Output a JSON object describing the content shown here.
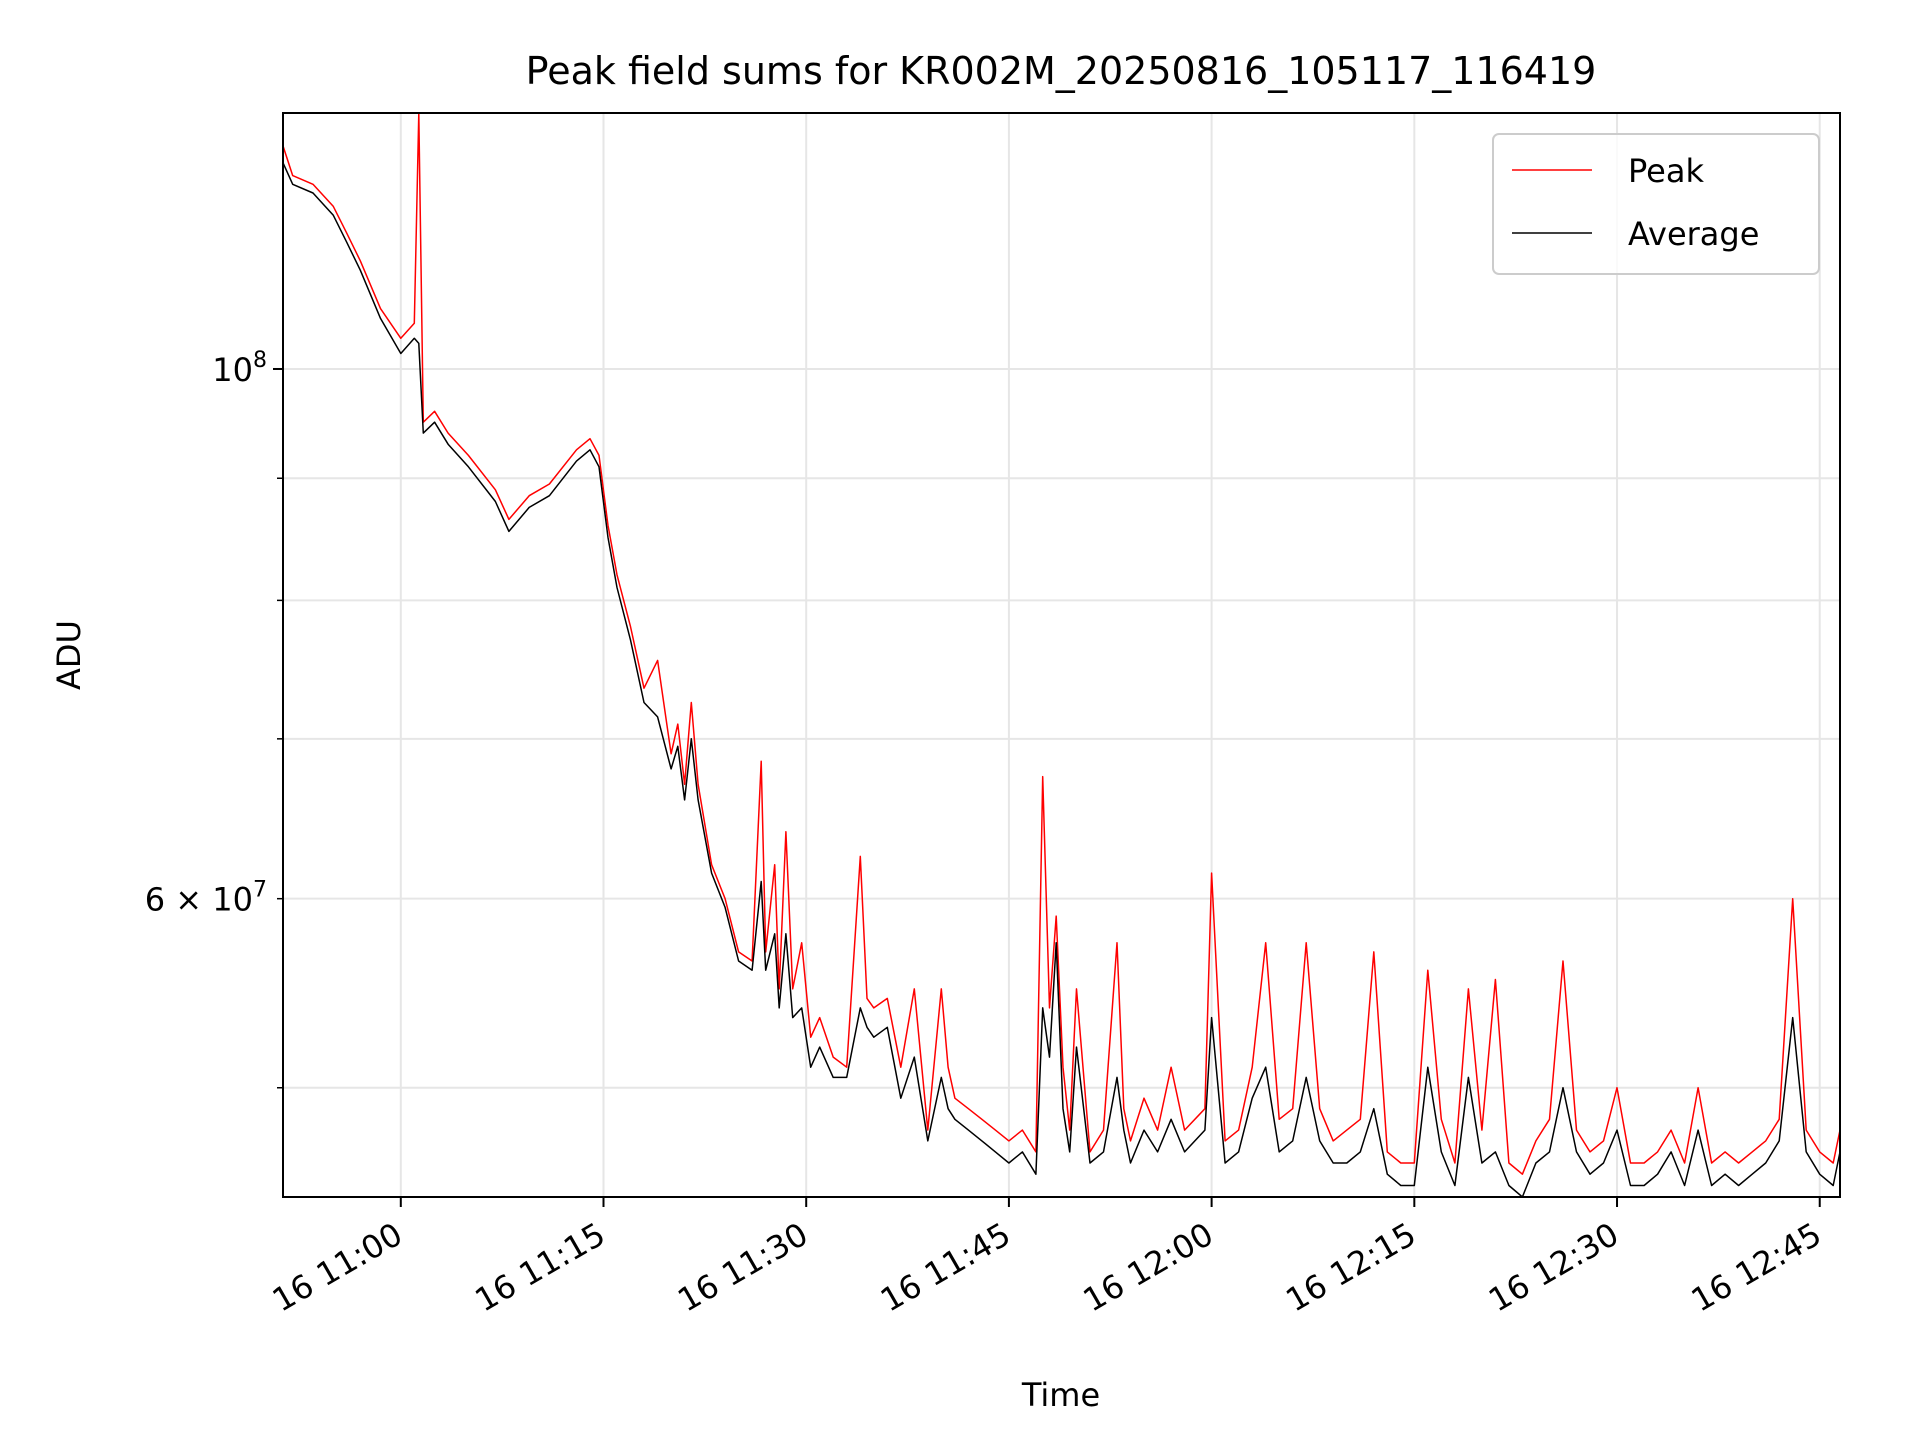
{
  "chart_data": {
    "type": "line",
    "title": "Peak field sums for KR002M_20250816_105117_116419",
    "xlabel": "Time",
    "ylabel": "ADU",
    "y_scale": "log",
    "ylim": [
      45000000,
      128000000
    ],
    "xlim": [
      "2025-08-16 10:51:17",
      "2025-08-16 12:46:30"
    ],
    "grid": true,
    "legend_position": "top-right",
    "x_ticks": [
      {
        "value": "2025-08-16 11:00",
        "label": "16 11:00"
      },
      {
        "value": "2025-08-16 11:15",
        "label": "16 11:15"
      },
      {
        "value": "2025-08-16 11:30",
        "label": "16 11:30"
      },
      {
        "value": "2025-08-16 11:45",
        "label": "16 11:45"
      },
      {
        "value": "2025-08-16 12:00",
        "label": "16 12:00"
      },
      {
        "value": "2025-08-16 12:15",
        "label": "16 12:15"
      },
      {
        "value": "2025-08-16 12:30",
        "label": "16 12:30"
      },
      {
        "value": "2025-08-16 12:45",
        "label": "16 12:45"
      }
    ],
    "y_ticks_major": [
      {
        "value": 100000000,
        "label_base": "10",
        "label_exp": "8"
      }
    ],
    "y_ticks_minor": [
      {
        "value": 50000000,
        "label": ""
      },
      {
        "value": 60000000,
        "label_mant": "6 × 10",
        "label_exp": "7"
      },
      {
        "value": 70000000,
        "label": ""
      },
      {
        "value": 80000000,
        "label": ""
      },
      {
        "value": 90000000,
        "label": ""
      }
    ],
    "series": [
      {
        "name": "Peak",
        "color": "#ff0000",
        "x": [
          "2025-08-16 10:51:17",
          "2025-08-16 10:52:00",
          "2025-08-16 10:53:30",
          "2025-08-16 10:55:00",
          "2025-08-16 10:56:00",
          "2025-08-16 10:57:00",
          "2025-08-16 10:58:30",
          "2025-08-16 11:00:00",
          "2025-08-16 11:01:00",
          "2025-08-16 11:01:20",
          "2025-08-16 11:01:40",
          "2025-08-16 11:02:30",
          "2025-08-16 11:03:30",
          "2025-08-16 11:05:00",
          "2025-08-16 11:07:00",
          "2025-08-16 11:08:00",
          "2025-08-16 11:09:30",
          "2025-08-16 11:11:00",
          "2025-08-16 11:13:00",
          "2025-08-16 11:14:00",
          "2025-08-16 11:14:40",
          "2025-08-16 11:15:20",
          "2025-08-16 11:16:00",
          "2025-08-16 11:17:00",
          "2025-08-16 11:18:00",
          "2025-08-16 11:19:00",
          "2025-08-16 11:20:00",
          "2025-08-16 11:20:30",
          "2025-08-16 11:21:00",
          "2025-08-16 11:21:30",
          "2025-08-16 11:22:00",
          "2025-08-16 11:23:00",
          "2025-08-16 11:24:00",
          "2025-08-16 11:25:00",
          "2025-08-16 11:26:00",
          "2025-08-16 11:26:40",
          "2025-08-16 11:27:00",
          "2025-08-16 11:27:40",
          "2025-08-16 11:28:00",
          "2025-08-16 11:28:30",
          "2025-08-16 11:29:00",
          "2025-08-16 11:29:40",
          "2025-08-16 11:30:20",
          "2025-08-16 11:31:00",
          "2025-08-16 11:32:00",
          "2025-08-16 11:33:00",
          "2025-08-16 11:34:00",
          "2025-08-16 11:34:30",
          "2025-08-16 11:35:00",
          "2025-08-16 11:36:00",
          "2025-08-16 11:37:00",
          "2025-08-16 11:38:00",
          "2025-08-16 11:39:00",
          "2025-08-16 11:40:00",
          "2025-08-16 11:40:30",
          "2025-08-16 11:41:00",
          "2025-08-16 11:42:00",
          "2025-08-16 11:43:00",
          "2025-08-16 11:44:00",
          "2025-08-16 11:45:00",
          "2025-08-16 11:46:00",
          "2025-08-16 11:47:00",
          "2025-08-16 11:47:30",
          "2025-08-16 11:48:00",
          "2025-08-16 11:48:30",
          "2025-08-16 11:49:00",
          "2025-08-16 11:49:30",
          "2025-08-16 11:50:00",
          "2025-08-16 11:51:00",
          "2025-08-16 11:52:00",
          "2025-08-16 11:53:00",
          "2025-08-16 11:53:30",
          "2025-08-16 11:54:00",
          "2025-08-16 11:55:00",
          "2025-08-16 11:56:00",
          "2025-08-16 11:57:00",
          "2025-08-16 11:58:00",
          "2025-08-16 11:59:30",
          "2025-08-16 12:00:00",
          "2025-08-16 12:01:00",
          "2025-08-16 12:02:00",
          "2025-08-16 12:03:00",
          "2025-08-16 12:04:00",
          "2025-08-16 12:05:00",
          "2025-08-16 12:06:00",
          "2025-08-16 12:07:00",
          "2025-08-16 12:08:00",
          "2025-08-16 12:09:00",
          "2025-08-16 12:10:00",
          "2025-08-16 12:11:00",
          "2025-08-16 12:12:00",
          "2025-08-16 12:13:00",
          "2025-08-16 12:14:00",
          "2025-08-16 12:15:00",
          "2025-08-16 12:16:00",
          "2025-08-16 12:17:00",
          "2025-08-16 12:18:00",
          "2025-08-16 12:19:00",
          "2025-08-16 12:20:00",
          "2025-08-16 12:21:00",
          "2025-08-16 12:22:00",
          "2025-08-16 12:23:00",
          "2025-08-16 12:24:00",
          "2025-08-16 12:25:00",
          "2025-08-16 12:26:00",
          "2025-08-16 12:27:00",
          "2025-08-16 12:28:00",
          "2025-08-16 12:29:00",
          "2025-08-16 12:30:00",
          "2025-08-16 12:31:00",
          "2025-08-16 12:32:00",
          "2025-08-16 12:33:00",
          "2025-08-16 12:34:00",
          "2025-08-16 12:35:00",
          "2025-08-16 12:36:00",
          "2025-08-16 12:37:00",
          "2025-08-16 12:38:00",
          "2025-08-16 12:39:00",
          "2025-08-16 12:40:00",
          "2025-08-16 12:41:00",
          "2025-08-16 12:42:00",
          "2025-08-16 12:43:00",
          "2025-08-16 12:44:00",
          "2025-08-16 12:45:00",
          "2025-08-16 12:46:00",
          "2025-08-16 12:46:30"
        ],
        "y": [
          124000000,
          120500000,
          119500000,
          117000000,
          114000000,
          111000000,
          106000000,
          103000000,
          104500000,
          128000000,
          95000000,
          96000000,
          94000000,
          92000000,
          89000000,
          86500000,
          88500000,
          89500000,
          92500000,
          93500000,
          92000000,
          86000000,
          82000000,
          78000000,
          73500000,
          75500000,
          69000000,
          71000000,
          67000000,
          72500000,
          67000000,
          62000000,
          60000000,
          57000000,
          56500000,
          68500000,
          57000000,
          62000000,
          55000000,
          64000000,
          55000000,
          57500000,
          52500000,
          53500000,
          51500000,
          51000000,
          62500000,
          54500000,
          54000000,
          54500000,
          51000000,
          55000000,
          48000000,
          55000000,
          51000000,
          49500000,
          49000000,
          48500000,
          48000000,
          47500000,
          48000000,
          47000000,
          67500000,
          54000000,
          59000000,
          51000000,
          48000000,
          55000000,
          47000000,
          48000000,
          57500000,
          49000000,
          47500000,
          49500000,
          48000000,
          51000000,
          48000000,
          49000000,
          61500000,
          47500000,
          48000000,
          51000000,
          57500000,
          48500000,
          49000000,
          57500000,
          49000000,
          47500000,
          48000000,
          48500000,
          57000000,
          47000000,
          46500000,
          46500000,
          56000000,
          48500000,
          46500000,
          55000000,
          48000000,
          55500000,
          46500000,
          46000000,
          47500000,
          48500000,
          56500000,
          48000000,
          47000000,
          47500000,
          50000000,
          46500000,
          46500000,
          47000000,
          48000000,
          46500000,
          50000000,
          46500000,
          47000000,
          46500000,
          47000000,
          47500000,
          48500000,
          60000000,
          48000000,
          47000000,
          46500000,
          48000000
        ]
      },
      {
        "name": "Average",
        "color": "#000000",
        "x": [
          "2025-08-16 10:51:17",
          "2025-08-16 10:52:00",
          "2025-08-16 10:53:30",
          "2025-08-16 10:55:00",
          "2025-08-16 10:56:00",
          "2025-08-16 10:57:00",
          "2025-08-16 10:58:30",
          "2025-08-16 11:00:00",
          "2025-08-16 11:01:00",
          "2025-08-16 11:01:20",
          "2025-08-16 11:01:40",
          "2025-08-16 11:02:30",
          "2025-08-16 11:03:30",
          "2025-08-16 11:05:00",
          "2025-08-16 11:07:00",
          "2025-08-16 11:08:00",
          "2025-08-16 11:09:30",
          "2025-08-16 11:11:00",
          "2025-08-16 11:13:00",
          "2025-08-16 11:14:00",
          "2025-08-16 11:14:40",
          "2025-08-16 11:15:20",
          "2025-08-16 11:16:00",
          "2025-08-16 11:17:00",
          "2025-08-16 11:18:00",
          "2025-08-16 11:19:00",
          "2025-08-16 11:20:00",
          "2025-08-16 11:20:30",
          "2025-08-16 11:21:00",
          "2025-08-16 11:21:30",
          "2025-08-16 11:22:00",
          "2025-08-16 11:23:00",
          "2025-08-16 11:24:00",
          "2025-08-16 11:25:00",
          "2025-08-16 11:26:00",
          "2025-08-16 11:26:40",
          "2025-08-16 11:27:00",
          "2025-08-16 11:27:40",
          "2025-08-16 11:28:00",
          "2025-08-16 11:28:30",
          "2025-08-16 11:29:00",
          "2025-08-16 11:29:40",
          "2025-08-16 11:30:20",
          "2025-08-16 11:31:00",
          "2025-08-16 11:32:00",
          "2025-08-16 11:33:00",
          "2025-08-16 11:34:00",
          "2025-08-16 11:34:30",
          "2025-08-16 11:35:00",
          "2025-08-16 11:36:00",
          "2025-08-16 11:37:00",
          "2025-08-16 11:38:00",
          "2025-08-16 11:39:00",
          "2025-08-16 11:40:00",
          "2025-08-16 11:40:30",
          "2025-08-16 11:41:00",
          "2025-08-16 11:42:00",
          "2025-08-16 11:43:00",
          "2025-08-16 11:44:00",
          "2025-08-16 11:45:00",
          "2025-08-16 11:46:00",
          "2025-08-16 11:47:00",
          "2025-08-16 11:47:30",
          "2025-08-16 11:48:00",
          "2025-08-16 11:48:30",
          "2025-08-16 11:49:00",
          "2025-08-16 11:49:30",
          "2025-08-16 11:50:00",
          "2025-08-16 11:51:00",
          "2025-08-16 11:52:00",
          "2025-08-16 11:53:00",
          "2025-08-16 11:53:30",
          "2025-08-16 11:54:00",
          "2025-08-16 11:55:00",
          "2025-08-16 11:56:00",
          "2025-08-16 11:57:00",
          "2025-08-16 11:58:00",
          "2025-08-16 11:59:30",
          "2025-08-16 12:00:00",
          "2025-08-16 12:01:00",
          "2025-08-16 12:02:00",
          "2025-08-16 12:03:00",
          "2025-08-16 12:04:00",
          "2025-08-16 12:05:00",
          "2025-08-16 12:06:00",
          "2025-08-16 12:07:00",
          "2025-08-16 12:08:00",
          "2025-08-16 12:09:00",
          "2025-08-16 12:10:00",
          "2025-08-16 12:11:00",
          "2025-08-16 12:12:00",
          "2025-08-16 12:13:00",
          "2025-08-16 12:14:00",
          "2025-08-16 12:15:00",
          "2025-08-16 12:16:00",
          "2025-08-16 12:17:00",
          "2025-08-16 12:18:00",
          "2025-08-16 12:19:00",
          "2025-08-16 12:20:00",
          "2025-08-16 12:21:00",
          "2025-08-16 12:22:00",
          "2025-08-16 12:23:00",
          "2025-08-16 12:24:00",
          "2025-08-16 12:25:00",
          "2025-08-16 12:26:00",
          "2025-08-16 12:27:00",
          "2025-08-16 12:28:00",
          "2025-08-16 12:29:00",
          "2025-08-16 12:30:00",
          "2025-08-16 12:31:00",
          "2025-08-16 12:32:00",
          "2025-08-16 12:33:00",
          "2025-08-16 12:34:00",
          "2025-08-16 12:35:00",
          "2025-08-16 12:36:00",
          "2025-08-16 12:37:00",
          "2025-08-16 12:38:00",
          "2025-08-16 12:39:00",
          "2025-08-16 12:40:00",
          "2025-08-16 12:41:00",
          "2025-08-16 12:42:00",
          "2025-08-16 12:43:00",
          "2025-08-16 12:44:00",
          "2025-08-16 12:45:00",
          "2025-08-16 12:46:00",
          "2025-08-16 12:46:30"
        ],
        "y": [
          122000000,
          119500000,
          118500000,
          116000000,
          113000000,
          110000000,
          105000000,
          101500000,
          103000000,
          102500000,
          94000000,
          95000000,
          93000000,
          91000000,
          88000000,
          85500000,
          87500000,
          88500000,
          91500000,
          92500000,
          91000000,
          85000000,
          81000000,
          77000000,
          72500000,
          71500000,
          68000000,
          69500000,
          66000000,
          70000000,
          66000000,
          61500000,
          59500000,
          56500000,
          56000000,
          61000000,
          56000000,
          58000000,
          54000000,
          58000000,
          53500000,
          54000000,
          51000000,
          52000000,
          50500000,
          50500000,
          54000000,
          53000000,
          52500000,
          53000000,
          49500000,
          51500000,
          47500000,
          50500000,
          49000000,
          48500000,
          48000000,
          47500000,
          47000000,
          46500000,
          47000000,
          46000000,
          54000000,
          51500000,
          57500000,
          49000000,
          47000000,
          52000000,
          46500000,
          47000000,
          50500000,
          48000000,
          46500000,
          48000000,
          47000000,
          48500000,
          47000000,
          48000000,
          53500000,
          46500000,
          47000000,
          49500000,
          51000000,
          47000000,
          47500000,
          50500000,
          47500000,
          46500000,
          46500000,
          47000000,
          49000000,
          46000000,
          45500000,
          45500000,
          51000000,
          47000000,
          45500000,
          50500000,
          46500000,
          47000000,
          45500000,
          45000000,
          46500000,
          47000000,
          50000000,
          47000000,
          46000000,
          46500000,
          48000000,
          45500000,
          45500000,
          46000000,
          47000000,
          45500000,
          48000000,
          45500000,
          46000000,
          45500000,
          46000000,
          46500000,
          47500000,
          53500000,
          47000000,
          46000000,
          45500000,
          47000000
        ]
      }
    ]
  }
}
